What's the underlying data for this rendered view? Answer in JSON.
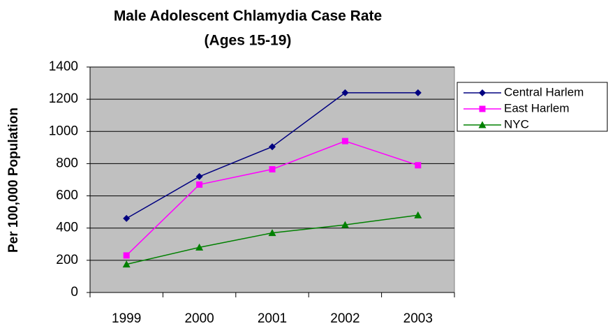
{
  "chart_data": {
    "type": "line",
    "title": [
      "Male Adolescent Chlamydia Case Rate",
      "(Ages 15-19)"
    ],
    "y_label": "Per 100,000 Population",
    "categories": [
      "1999",
      "2000",
      "2001",
      "2002",
      "2003"
    ],
    "series": [
      {
        "name": "Central Harlem",
        "color": "#000080",
        "marker": "diamond",
        "values": [
          460,
          720,
          905,
          1240,
          1240
        ]
      },
      {
        "name": "East Harlem",
        "color": "#ff00ff",
        "marker": "square",
        "values": [
          230,
          670,
          765,
          940,
          790
        ]
      },
      {
        "name": "NYC",
        "color": "#008000",
        "marker": "triangle",
        "values": [
          175,
          280,
          370,
          420,
          480
        ]
      }
    ],
    "ylim": [
      0,
      1400
    ],
    "yticks": [
      0,
      200,
      400,
      600,
      800,
      1000,
      1200,
      1400
    ],
    "grid": true,
    "legend": "right",
    "plot_background": "#c0c0c0"
  }
}
